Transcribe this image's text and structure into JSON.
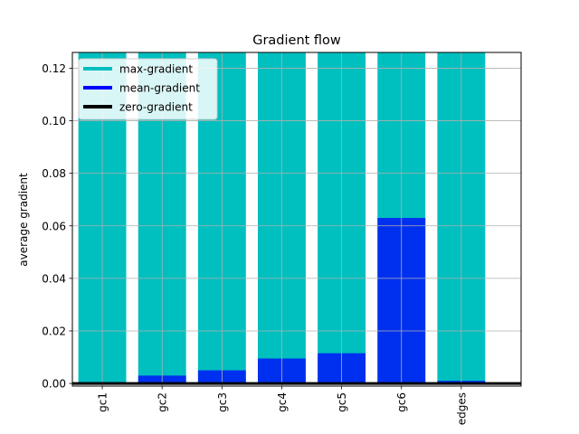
{
  "chart_data": {
    "type": "bar",
    "title": "Gradient flow",
    "xlabel": "",
    "ylabel": "average gradient",
    "categories": [
      "gc1",
      "gc2",
      "gc3",
      "gc4",
      "gc5",
      "gc6",
      "edges"
    ],
    "xlim": [
      -0.5,
      7.0
    ],
    "ylim": [
      -0.001,
      0.126
    ],
    "yticks": [
      0.0,
      0.02,
      0.04,
      0.06,
      0.08,
      0.1,
      0.12
    ],
    "ytick_labels": [
      "0.00",
      "0.02",
      "0.04",
      "0.06",
      "0.08",
      "0.10",
      "0.12"
    ],
    "grid": true,
    "legend_position": "upper-left",
    "series": [
      {
        "name": "max-gradient",
        "color": "#00bfbf",
        "values": [
          0.126,
          0.126,
          0.126,
          0.126,
          0.126,
          0.126,
          0.126
        ]
      },
      {
        "name": "mean-gradient",
        "color": "#0000ff",
        "values": [
          0.0005,
          0.003,
          0.005,
          0.0095,
          0.0115,
          0.063,
          0.001
        ]
      }
    ],
    "zero_line": {
      "name": "zero-gradient",
      "color": "#000000",
      "value": 0
    },
    "legend": [
      {
        "label": "max-gradient",
        "color": "#00bfbf"
      },
      {
        "label": "mean-gradient",
        "color": "#0000ff"
      },
      {
        "label": "zero-gradient",
        "color": "#000000"
      }
    ]
  }
}
